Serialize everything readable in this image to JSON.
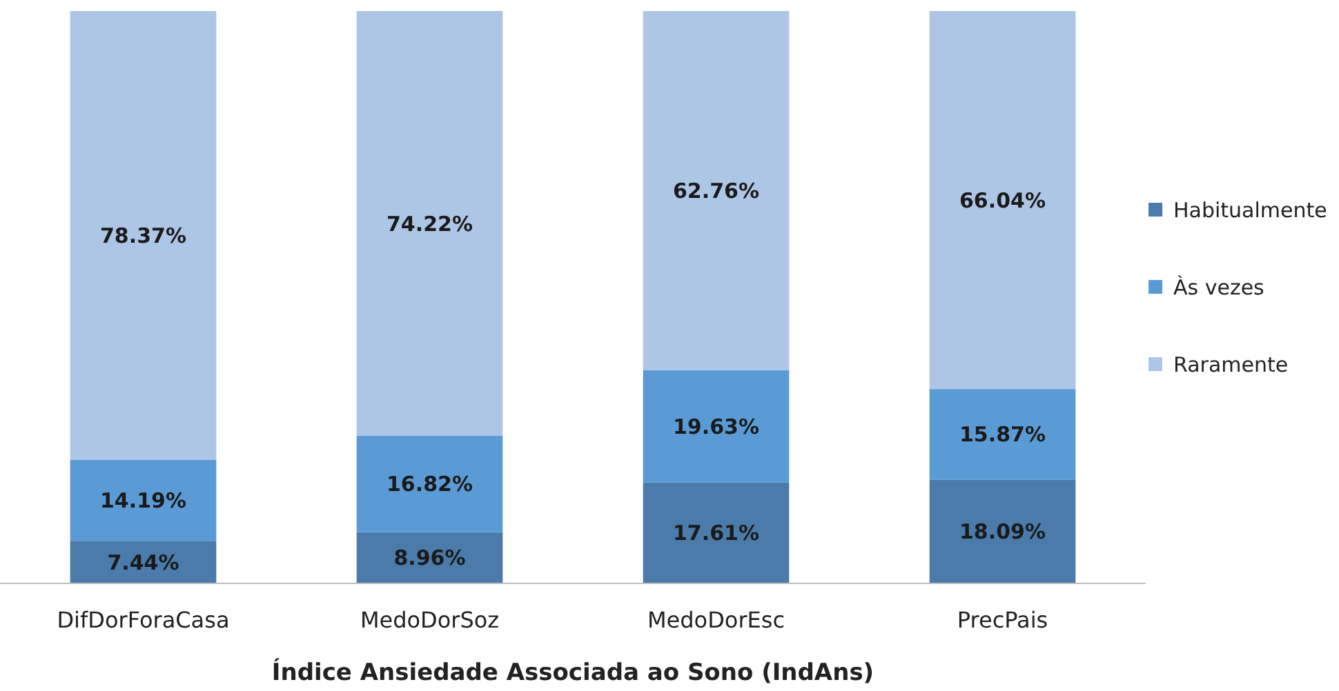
{
  "chart_data": {
    "type": "bar",
    "stacked": true,
    "xlabel": "Índice Ansiedade Associada ao Sono (IndAns)",
    "categories": [
      "DifDorForaCasa",
      "MedoDorSoz",
      "MedoDorEsc",
      "PrecPais"
    ],
    "series": [
      {
        "name": "Habitualmente",
        "color": "#4a7bab",
        "values": [
          7.44,
          8.96,
          17.61,
          18.09
        ],
        "value_labels": [
          "7.44%",
          "8.96%",
          "17.61%",
          "18.09%"
        ]
      },
      {
        "name": "Às vezes",
        "color": "#5b9bd5",
        "values": [
          14.19,
          16.82,
          19.63,
          15.87
        ],
        "value_labels": [
          "14.19%",
          "16.82%",
          "19.63%",
          "15.87%"
        ]
      },
      {
        "name": "Raramente",
        "color": "#adc6e5",
        "values": [
          78.37,
          74.22,
          62.76,
          66.04
        ],
        "value_labels": [
          "78.37%",
          "74.22%",
          "62.76%",
          "66.04%"
        ]
      }
    ],
    "legend": "right"
  }
}
